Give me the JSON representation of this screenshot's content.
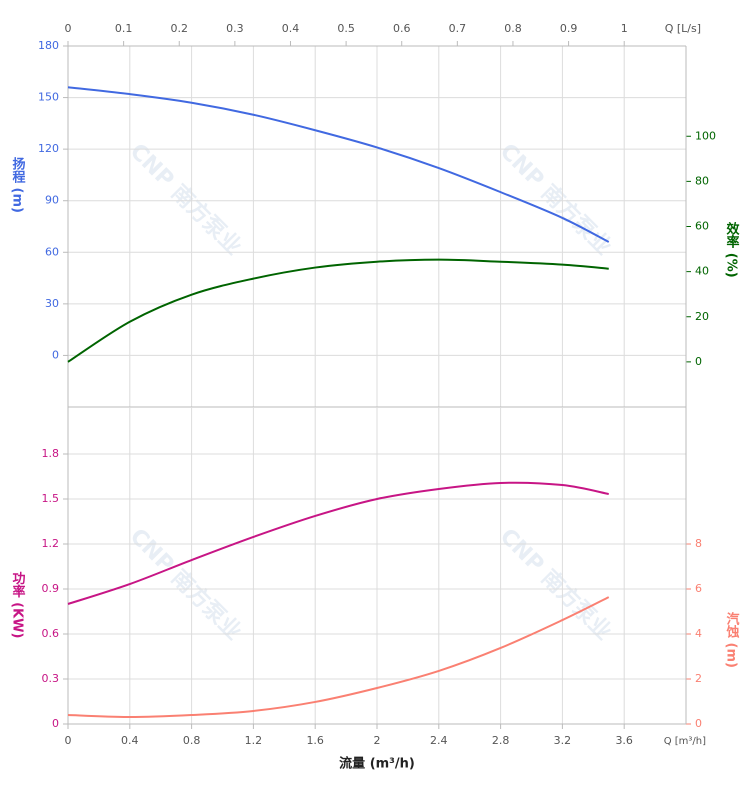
{
  "chart_data": [
    {
      "type": "line",
      "x2label": "Q [L/s]",
      "x2lim": [
        0,
        1.1111
      ],
      "x2ticks": [
        0,
        0.1,
        0.2,
        0.3,
        0.4,
        0.5,
        0.6,
        0.7,
        0.8,
        0.9,
        1
      ],
      "x": [
        0,
        0.4,
        0.8,
        1.2,
        1.6,
        2.0,
        2.4,
        2.8,
        3.2,
        3.5
      ],
      "xlim": [
        0,
        4
      ],
      "xticks": [
        0,
        0.4,
        0.8,
        1.2,
        1.6,
        2,
        2.4,
        2.8,
        3.2,
        3.6
      ],
      "ylabel": "扬程 (m)",
      "ylim": [
        -30,
        180
      ],
      "yticks": [
        180,
        150,
        120,
        90,
        60,
        30,
        0
      ],
      "y2label": "效率 (%)",
      "y2lim": [
        -20,
        140
      ],
      "y2ticks": [
        100,
        80,
        60,
        40,
        20,
        0
      ],
      "grid": true,
      "watermark": "CNP 南方泵业",
      "series": [
        {
          "color": "#4169e1",
          "axis": "y",
          "values": [
            156,
            152,
            147,
            140,
            131,
            121,
            109,
            95,
            80,
            66
          ]
        },
        {
          "color": "#006400",
          "axis": "y2",
          "values": [
            0,
            17.8,
            29.8,
            36.9,
            41.8,
            44.4,
            45.3,
            44.4,
            43.1,
            41.3
          ]
        }
      ]
    },
    {
      "type": "line",
      "xlabel": "流量 (m³/h)",
      "xunit": "Q [m³/h]",
      "x": [
        0,
        0.4,
        0.8,
        1.2,
        1.6,
        2.0,
        2.4,
        2.8,
        3.2,
        3.5
      ],
      "xlim": [
        0,
        4
      ],
      "xticks": [
        0,
        0.4,
        0.8,
        1.2,
        1.6,
        2,
        2.4,
        2.8,
        3.2,
        3.6
      ],
      "ylabel": "功率 (KW)",
      "ylim": [
        0,
        2.1133
      ],
      "yticks": [
        1.8,
        1.5,
        1.2,
        0.9,
        0.6,
        0.3,
        0
      ],
      "y2label": "汽蚀 (m)",
      "y2lim": [
        0,
        14.09
      ],
      "y2ticks": [
        8,
        6,
        4,
        2,
        0
      ],
      "grid": true,
      "watermark": "CNP 南方泵业",
      "series": [
        {
          "color": "#c71585",
          "axis": "y",
          "values": [
            0.8,
            0.933,
            1.093,
            1.247,
            1.387,
            1.5,
            1.567,
            1.607,
            1.593,
            1.533
          ]
        },
        {
          "color": "#fa8072",
          "axis": "y2",
          "values": [
            0.4,
            0.31,
            0.4,
            0.58,
            0.98,
            1.6,
            2.36,
            3.38,
            4.62,
            5.64
          ]
        }
      ]
    }
  ]
}
